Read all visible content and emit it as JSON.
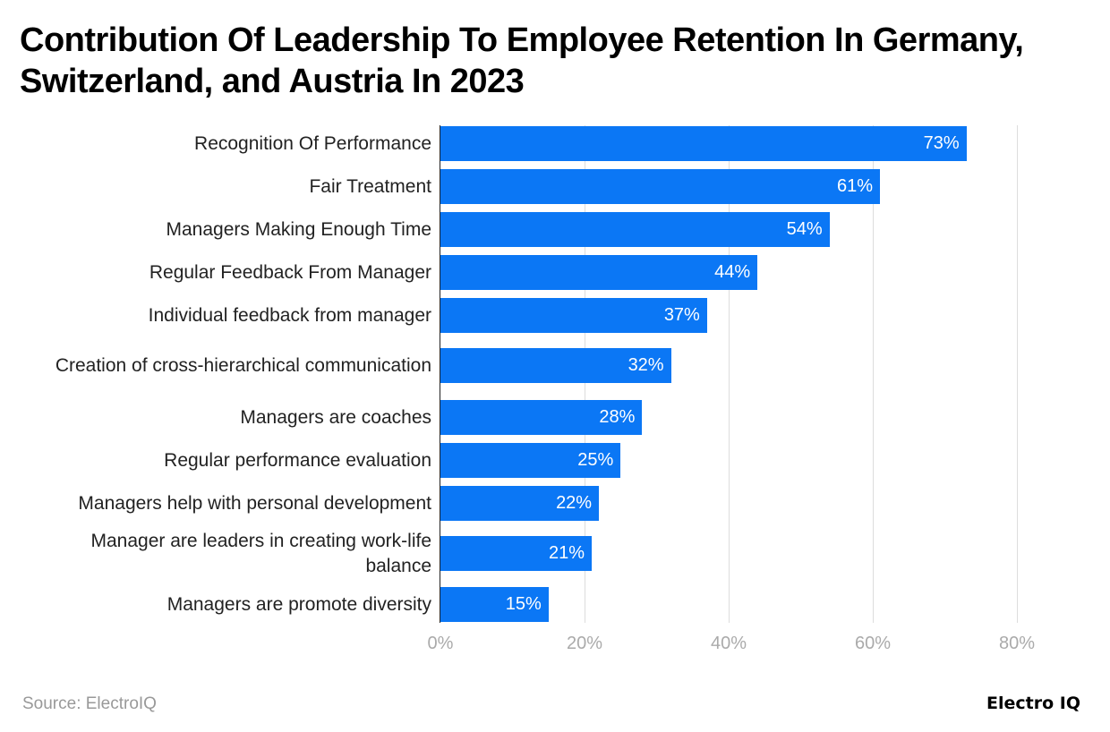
{
  "chart_data": {
    "type": "bar",
    "orientation": "horizontal",
    "title": "Contribution Of Leadership To Employee Retention In Germany, Switzerland, and Austria In 2023",
    "categories": [
      "Recognition Of Performance",
      "Fair Treatment",
      "Managers Making Enough Time",
      "Regular Feedback From Manager",
      "Individual feedback from manager",
      "Creation of cross-hierarchical communication",
      "Managers are coaches",
      "Regular performance evaluation",
      "Managers help with personal development",
      "Manager are leaders in creating work-life balance",
      "Managers are promote diversity"
    ],
    "values": [
      73,
      61,
      54,
      44,
      37,
      32,
      28,
      25,
      22,
      21,
      15
    ],
    "value_labels": [
      "73%",
      "61%",
      "54%",
      "44%",
      "37%",
      "32%",
      "28%",
      "25%",
      "22%",
      "21%",
      "15%"
    ],
    "xlim": [
      0,
      80
    ],
    "x_ticks": [
      "0%",
      "20%",
      "40%",
      "60%",
      "80%"
    ],
    "grid": true,
    "bar_color": "#0b77f5"
  },
  "source": "Source: ElectroIQ",
  "logo": "Electro IQ"
}
